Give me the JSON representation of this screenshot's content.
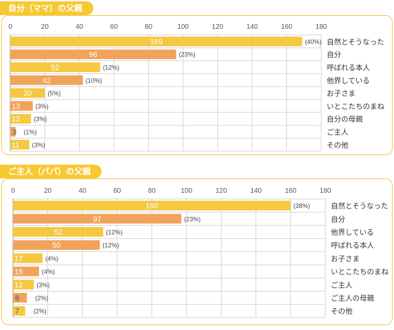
{
  "colors": {
    "accent": "#f7c832",
    "bar_a": "#f5c842",
    "bar_b": "#f0a35a",
    "frame": "#f2c84b",
    "grid": "#d6d6d6"
  },
  "chart_data": [
    {
      "type": "bar",
      "orientation": "horizontal",
      "title": "自分（ママ）の父親",
      "xlim": [
        0,
        180
      ],
      "ticks": [
        "0",
        "20",
        "40",
        "60",
        "80",
        "100",
        "120",
        "140",
        "160",
        "180"
      ],
      "categories": [
        "自然とそうなった",
        "自分",
        "呼ばれる本人",
        "他界している",
        "お子さま",
        "いとこたちのまね",
        "自分の母親",
        "ご主人",
        "その他"
      ],
      "values": [
        169,
        96,
        52,
        42,
        20,
        13,
        12,
        3,
        11
      ],
      "percent_labels": [
        "(40%)",
        "(23%)",
        "(12%)",
        "(10%)",
        "(5%)",
        "(3%)",
        "(3%)",
        "(1%)",
        "(3%)"
      ],
      "grid": true
    },
    {
      "type": "bar",
      "orientation": "horizontal",
      "title": "ご主人（パパ）の父親",
      "xlim": [
        0,
        180
      ],
      "ticks": [
        "0",
        "20",
        "40",
        "60",
        "80",
        "100",
        "120",
        "140",
        "160",
        "180"
      ],
      "categories": [
        "自然とそうなった",
        "自分",
        "他界している",
        "呼ばれる本人",
        "お子さま",
        "いとこたちのまね",
        "ご主人",
        "ご主人の母親",
        "その他"
      ],
      "values": [
        160,
        97,
        52,
        50,
        17,
        15,
        12,
        8,
        7
      ],
      "percent_labels": [
        "(38%)",
        "(23%)",
        "(12%)",
        "(12%)",
        "(4%)",
        "(4%)",
        "(3%)",
        "(2%)",
        "(2%)"
      ],
      "grid": true
    }
  ]
}
